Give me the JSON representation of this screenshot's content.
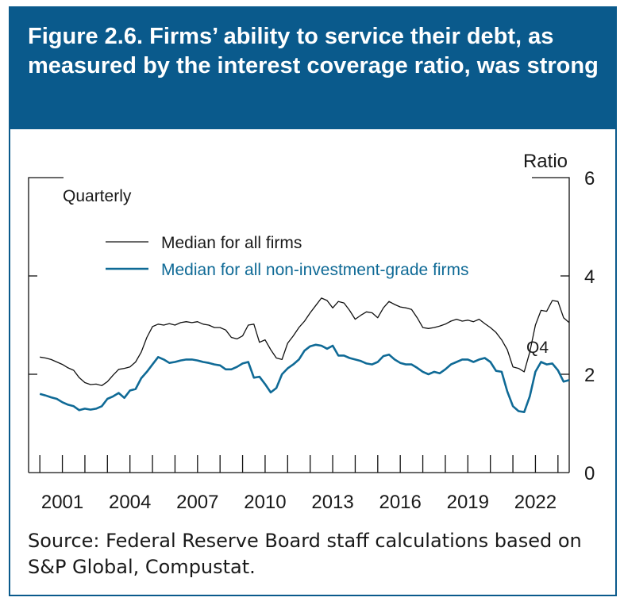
{
  "figure": {
    "title": "Figure 2.6. Firms’ ability to service their debt, as measured by the interest coverage ratio, was strong",
    "source": "Source: Federal Reserve Board staff calculations based on S&P Global, Compustat."
  },
  "colors": {
    "brand_blue": "#0a5a8c",
    "series_all": "#111111",
    "series_nig": "#0f6a96"
  },
  "chart_data": {
    "type": "line",
    "frequency_label": "Quarterly",
    "y_unit_label": "Ratio",
    "ylim": [
      0,
      6
    ],
    "y_ticks": [
      0,
      2,
      4,
      6
    ],
    "xlim": [
      1999.5,
      2023.5
    ],
    "x_tick_labels": [
      "2001",
      "2004",
      "2007",
      "2010",
      "2013",
      "2016",
      "2019",
      "2022"
    ],
    "end_annotation": "Q4",
    "series": [
      {
        "name": "Median for all firms",
        "color": "#111111",
        "points": [
          [
            2000.0,
            2.35
          ],
          [
            2000.25,
            2.33
          ],
          [
            2000.5,
            2.3
          ],
          [
            2000.75,
            2.25
          ],
          [
            2001.0,
            2.2
          ],
          [
            2001.25,
            2.13
          ],
          [
            2001.5,
            2.08
          ],
          [
            2001.75,
            1.93
          ],
          [
            2002.0,
            1.83
          ],
          [
            2002.25,
            1.79
          ],
          [
            2002.5,
            1.8
          ],
          [
            2002.75,
            1.77
          ],
          [
            2003.0,
            1.85
          ],
          [
            2003.25,
            1.98
          ],
          [
            2003.5,
            2.1
          ],
          [
            2003.75,
            2.12
          ],
          [
            2004.0,
            2.15
          ],
          [
            2004.25,
            2.25
          ],
          [
            2004.5,
            2.45
          ],
          [
            2004.75,
            2.75
          ],
          [
            2005.0,
            2.97
          ],
          [
            2005.25,
            3.02
          ],
          [
            2005.5,
            3.0
          ],
          [
            2005.75,
            3.03
          ],
          [
            2006.0,
            3.0
          ],
          [
            2006.25,
            3.05
          ],
          [
            2006.5,
            3.07
          ],
          [
            2006.75,
            3.05
          ],
          [
            2007.0,
            3.07
          ],
          [
            2007.25,
            3.02
          ],
          [
            2007.5,
            3.0
          ],
          [
            2007.75,
            2.95
          ],
          [
            2008.0,
            2.95
          ],
          [
            2008.25,
            2.9
          ],
          [
            2008.5,
            2.75
          ],
          [
            2008.75,
            2.72
          ],
          [
            2009.0,
            2.78
          ],
          [
            2009.25,
            3.0
          ],
          [
            2009.5,
            3.02
          ],
          [
            2009.75,
            2.65
          ],
          [
            2010.0,
            2.7
          ],
          [
            2010.25,
            2.5
          ],
          [
            2010.5,
            2.33
          ],
          [
            2010.75,
            2.3
          ],
          [
            2011.0,
            2.63
          ],
          [
            2011.25,
            2.78
          ],
          [
            2011.5,
            2.95
          ],
          [
            2011.75,
            3.08
          ],
          [
            2012.0,
            3.25
          ],
          [
            2012.25,
            3.4
          ],
          [
            2012.5,
            3.55
          ],
          [
            2012.75,
            3.5
          ],
          [
            2013.0,
            3.35
          ],
          [
            2013.25,
            3.48
          ],
          [
            2013.5,
            3.45
          ],
          [
            2013.75,
            3.3
          ],
          [
            2014.0,
            3.12
          ],
          [
            2014.25,
            3.2
          ],
          [
            2014.5,
            3.27
          ],
          [
            2014.75,
            3.25
          ],
          [
            2015.0,
            3.15
          ],
          [
            2015.25,
            3.35
          ],
          [
            2015.5,
            3.48
          ],
          [
            2015.75,
            3.42
          ],
          [
            2016.0,
            3.37
          ],
          [
            2016.25,
            3.35
          ],
          [
            2016.5,
            3.32
          ],
          [
            2016.75,
            3.15
          ],
          [
            2017.0,
            2.95
          ],
          [
            2017.25,
            2.93
          ],
          [
            2017.5,
            2.95
          ],
          [
            2017.75,
            2.98
          ],
          [
            2018.0,
            3.02
          ],
          [
            2018.25,
            3.08
          ],
          [
            2018.5,
            3.12
          ],
          [
            2018.75,
            3.08
          ],
          [
            2019.0,
            3.1
          ],
          [
            2019.25,
            3.07
          ],
          [
            2019.5,
            3.12
          ],
          [
            2019.75,
            3.03
          ],
          [
            2020.0,
            2.95
          ],
          [
            2020.25,
            2.85
          ],
          [
            2020.5,
            2.7
          ],
          [
            2020.75,
            2.5
          ],
          [
            2021.0,
            2.15
          ],
          [
            2021.25,
            2.12
          ],
          [
            2021.5,
            2.05
          ],
          [
            2021.75,
            2.45
          ],
          [
            2022.0,
            3.0
          ],
          [
            2022.25,
            3.3
          ],
          [
            2022.5,
            3.28
          ],
          [
            2022.75,
            3.5
          ],
          [
            2023.0,
            3.48
          ],
          [
            2023.25,
            3.15
          ],
          [
            2023.5,
            3.05
          ]
        ]
      },
      {
        "name": "Median for all non-investment-grade firms",
        "color": "#0f6a96",
        "points": [
          [
            2000.0,
            1.6
          ],
          [
            2000.25,
            1.57
          ],
          [
            2000.5,
            1.53
          ],
          [
            2000.75,
            1.5
          ],
          [
            2001.0,
            1.43
          ],
          [
            2001.25,
            1.38
          ],
          [
            2001.5,
            1.35
          ],
          [
            2001.75,
            1.27
          ],
          [
            2002.0,
            1.3
          ],
          [
            2002.25,
            1.28
          ],
          [
            2002.5,
            1.3
          ],
          [
            2002.75,
            1.35
          ],
          [
            2003.0,
            1.5
          ],
          [
            2003.25,
            1.55
          ],
          [
            2003.5,
            1.62
          ],
          [
            2003.75,
            1.52
          ],
          [
            2004.0,
            1.67
          ],
          [
            2004.25,
            1.7
          ],
          [
            2004.5,
            1.92
          ],
          [
            2004.75,
            2.05
          ],
          [
            2005.0,
            2.2
          ],
          [
            2005.25,
            2.35
          ],
          [
            2005.5,
            2.3
          ],
          [
            2005.75,
            2.23
          ],
          [
            2006.0,
            2.25
          ],
          [
            2006.25,
            2.28
          ],
          [
            2006.5,
            2.3
          ],
          [
            2006.75,
            2.3
          ],
          [
            2007.0,
            2.28
          ],
          [
            2007.25,
            2.25
          ],
          [
            2007.5,
            2.23
          ],
          [
            2007.75,
            2.2
          ],
          [
            2008.0,
            2.18
          ],
          [
            2008.25,
            2.1
          ],
          [
            2008.5,
            2.1
          ],
          [
            2008.75,
            2.15
          ],
          [
            2009.0,
            2.22
          ],
          [
            2009.25,
            2.25
          ],
          [
            2009.5,
            1.93
          ],
          [
            2009.75,
            1.95
          ],
          [
            2010.0,
            1.8
          ],
          [
            2010.25,
            1.63
          ],
          [
            2010.5,
            1.72
          ],
          [
            2010.75,
            2.0
          ],
          [
            2011.0,
            2.12
          ],
          [
            2011.25,
            2.2
          ],
          [
            2011.5,
            2.3
          ],
          [
            2011.75,
            2.48
          ],
          [
            2012.0,
            2.57
          ],
          [
            2012.25,
            2.6
          ],
          [
            2012.5,
            2.58
          ],
          [
            2012.75,
            2.52
          ],
          [
            2013.0,
            2.58
          ],
          [
            2013.25,
            2.38
          ],
          [
            2013.5,
            2.38
          ],
          [
            2013.75,
            2.33
          ],
          [
            2014.0,
            2.3
          ],
          [
            2014.25,
            2.27
          ],
          [
            2014.5,
            2.22
          ],
          [
            2014.75,
            2.2
          ],
          [
            2015.0,
            2.25
          ],
          [
            2015.25,
            2.37
          ],
          [
            2015.5,
            2.4
          ],
          [
            2015.75,
            2.3
          ],
          [
            2016.0,
            2.23
          ],
          [
            2016.25,
            2.2
          ],
          [
            2016.5,
            2.2
          ],
          [
            2016.75,
            2.13
          ],
          [
            2017.0,
            2.05
          ],
          [
            2017.25,
            2.0
          ],
          [
            2017.5,
            2.05
          ],
          [
            2017.75,
            2.02
          ],
          [
            2018.0,
            2.1
          ],
          [
            2018.25,
            2.2
          ],
          [
            2018.5,
            2.25
          ],
          [
            2018.75,
            2.3
          ],
          [
            2019.0,
            2.3
          ],
          [
            2019.25,
            2.25
          ],
          [
            2019.5,
            2.3
          ],
          [
            2019.75,
            2.33
          ],
          [
            2020.0,
            2.25
          ],
          [
            2020.25,
            2.07
          ],
          [
            2020.5,
            2.05
          ],
          [
            2020.75,
            1.65
          ],
          [
            2021.0,
            1.35
          ],
          [
            2021.25,
            1.25
          ],
          [
            2021.5,
            1.23
          ],
          [
            2021.75,
            1.55
          ],
          [
            2022.0,
            2.05
          ],
          [
            2022.25,
            2.25
          ],
          [
            2022.5,
            2.2
          ],
          [
            2022.75,
            2.22
          ],
          [
            2023.0,
            2.08
          ],
          [
            2023.25,
            1.85
          ],
          [
            2023.5,
            1.88
          ]
        ]
      }
    ]
  }
}
